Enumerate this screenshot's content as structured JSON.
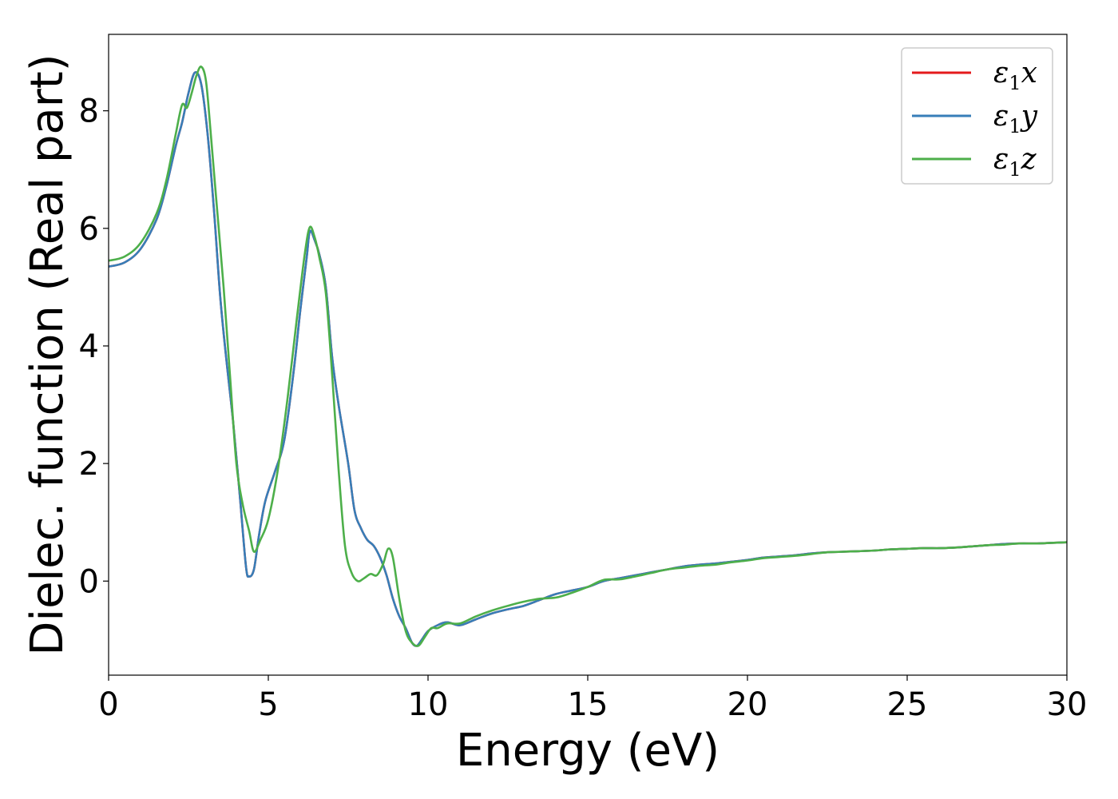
{
  "chart_data": {
    "type": "line",
    "title": "",
    "xlabel": "Energy (eV)",
    "ylabel": "Dielec. function (Real part)",
    "xlim": [
      0,
      30
    ],
    "ylim": [
      -1.6,
      9.3
    ],
    "xticks": [
      0,
      5,
      10,
      15,
      20,
      25,
      30
    ],
    "yticks": [
      0,
      2,
      4,
      6,
      8
    ],
    "grid": false,
    "legend_position": "top-right",
    "series": [
      {
        "name": "ε1x",
        "label_base": "ε",
        "label_sub": "1",
        "label_tail": "x",
        "color": "#e41a1c",
        "points": [
          [
            0,
            5.35
          ],
          [
            0.5,
            5.42
          ],
          [
            1.0,
            5.65
          ],
          [
            1.5,
            6.15
          ],
          [
            1.8,
            6.7
          ],
          [
            2.1,
            7.4
          ],
          [
            2.3,
            7.8
          ],
          [
            2.5,
            8.3
          ],
          [
            2.7,
            8.65
          ],
          [
            2.9,
            8.45
          ],
          [
            3.1,
            7.6
          ],
          [
            3.3,
            6.3
          ],
          [
            3.5,
            4.8
          ],
          [
            3.7,
            3.7
          ],
          [
            3.9,
            2.7
          ],
          [
            4.1,
            1.5
          ],
          [
            4.3,
            0.25
          ],
          [
            4.4,
            0.08
          ],
          [
            4.55,
            0.2
          ],
          [
            4.7,
            0.75
          ],
          [
            4.9,
            1.35
          ],
          [
            5.2,
            1.85
          ],
          [
            5.5,
            2.4
          ],
          [
            5.8,
            3.6
          ],
          [
            6.0,
            4.6
          ],
          [
            6.2,
            5.5
          ],
          [
            6.3,
            5.95
          ],
          [
            6.45,
            5.8
          ],
          [
            6.6,
            5.55
          ],
          [
            6.8,
            5.0
          ],
          [
            7.0,
            3.8
          ],
          [
            7.2,
            3.0
          ],
          [
            7.5,
            2.0
          ],
          [
            7.7,
            1.2
          ],
          [
            7.9,
            0.9
          ],
          [
            8.1,
            0.7
          ],
          [
            8.3,
            0.6
          ],
          [
            8.5,
            0.4
          ],
          [
            8.7,
            0.1
          ],
          [
            8.9,
            -0.3
          ],
          [
            9.1,
            -0.6
          ],
          [
            9.3,
            -0.8
          ],
          [
            9.5,
            -1.05
          ],
          [
            9.65,
            -1.1
          ],
          [
            9.8,
            -1.0
          ],
          [
            10.0,
            -0.85
          ],
          [
            10.3,
            -0.75
          ],
          [
            10.6,
            -0.7
          ],
          [
            11.0,
            -0.75
          ],
          [
            11.5,
            -0.65
          ],
          [
            12.0,
            -0.55
          ],
          [
            12.5,
            -0.48
          ],
          [
            13.0,
            -0.42
          ],
          [
            13.5,
            -0.32
          ],
          [
            14.0,
            -0.22
          ],
          [
            14.5,
            -0.16
          ],
          [
            15.0,
            -0.1
          ],
          [
            15.5,
            0.0
          ],
          [
            16.0,
            0.05
          ],
          [
            16.5,
            0.1
          ],
          [
            17.0,
            0.15
          ],
          [
            17.5,
            0.2
          ],
          [
            18.0,
            0.25
          ],
          [
            18.5,
            0.28
          ],
          [
            19.0,
            0.3
          ],
          [
            19.5,
            0.33
          ],
          [
            20.0,
            0.36
          ],
          [
            20.5,
            0.4
          ],
          [
            21.0,
            0.42
          ],
          [
            21.5,
            0.44
          ],
          [
            22.0,
            0.47
          ],
          [
            22.5,
            0.49
          ],
          [
            23.0,
            0.5
          ],
          [
            23.5,
            0.51
          ],
          [
            24.0,
            0.52
          ],
          [
            24.5,
            0.54
          ],
          [
            25.0,
            0.55
          ],
          [
            25.5,
            0.56
          ],
          [
            26.0,
            0.56
          ],
          [
            26.5,
            0.57
          ],
          [
            27.0,
            0.59
          ],
          [
            27.5,
            0.61
          ],
          [
            28.0,
            0.63
          ],
          [
            28.5,
            0.64
          ],
          [
            29.0,
            0.64
          ],
          [
            29.5,
            0.65
          ],
          [
            30.0,
            0.66
          ]
        ]
      },
      {
        "name": "ε1y",
        "label_base": "ε",
        "label_sub": "1",
        "label_tail": "y",
        "color": "#377eb8",
        "points": [
          [
            0,
            5.35
          ],
          [
            0.5,
            5.42
          ],
          [
            1.0,
            5.65
          ],
          [
            1.5,
            6.15
          ],
          [
            1.8,
            6.7
          ],
          [
            2.1,
            7.4
          ],
          [
            2.3,
            7.8
          ],
          [
            2.5,
            8.3
          ],
          [
            2.7,
            8.65
          ],
          [
            2.9,
            8.45
          ],
          [
            3.1,
            7.6
          ],
          [
            3.3,
            6.3
          ],
          [
            3.5,
            4.8
          ],
          [
            3.7,
            3.7
          ],
          [
            3.9,
            2.7
          ],
          [
            4.1,
            1.5
          ],
          [
            4.3,
            0.25
          ],
          [
            4.4,
            0.08
          ],
          [
            4.55,
            0.2
          ],
          [
            4.7,
            0.75
          ],
          [
            4.9,
            1.35
          ],
          [
            5.2,
            1.85
          ],
          [
            5.5,
            2.4
          ],
          [
            5.8,
            3.6
          ],
          [
            6.0,
            4.6
          ],
          [
            6.2,
            5.5
          ],
          [
            6.3,
            5.95
          ],
          [
            6.45,
            5.8
          ],
          [
            6.6,
            5.55
          ],
          [
            6.8,
            5.0
          ],
          [
            7.0,
            3.8
          ],
          [
            7.2,
            3.0
          ],
          [
            7.5,
            2.0
          ],
          [
            7.7,
            1.2
          ],
          [
            7.9,
            0.9
          ],
          [
            8.1,
            0.7
          ],
          [
            8.3,
            0.6
          ],
          [
            8.5,
            0.4
          ],
          [
            8.7,
            0.1
          ],
          [
            8.9,
            -0.3
          ],
          [
            9.1,
            -0.6
          ],
          [
            9.3,
            -0.8
          ],
          [
            9.5,
            -1.05
          ],
          [
            9.65,
            -1.1
          ],
          [
            9.8,
            -1.0
          ],
          [
            10.0,
            -0.85
          ],
          [
            10.3,
            -0.75
          ],
          [
            10.6,
            -0.7
          ],
          [
            11.0,
            -0.75
          ],
          [
            11.5,
            -0.65
          ],
          [
            12.0,
            -0.55
          ],
          [
            12.5,
            -0.48
          ],
          [
            13.0,
            -0.42
          ],
          [
            13.5,
            -0.32
          ],
          [
            14.0,
            -0.22
          ],
          [
            14.5,
            -0.16
          ],
          [
            15.0,
            -0.1
          ],
          [
            15.5,
            0.0
          ],
          [
            16.0,
            0.05
          ],
          [
            16.5,
            0.1
          ],
          [
            17.0,
            0.15
          ],
          [
            17.5,
            0.2
          ],
          [
            18.0,
            0.25
          ],
          [
            18.5,
            0.28
          ],
          [
            19.0,
            0.3
          ],
          [
            19.5,
            0.33
          ],
          [
            20.0,
            0.36
          ],
          [
            20.5,
            0.4
          ],
          [
            21.0,
            0.42
          ],
          [
            21.5,
            0.44
          ],
          [
            22.0,
            0.47
          ],
          [
            22.5,
            0.49
          ],
          [
            23.0,
            0.5
          ],
          [
            23.5,
            0.51
          ],
          [
            24.0,
            0.52
          ],
          [
            24.5,
            0.54
          ],
          [
            25.0,
            0.55
          ],
          [
            25.5,
            0.56
          ],
          [
            26.0,
            0.56
          ],
          [
            26.5,
            0.57
          ],
          [
            27.0,
            0.59
          ],
          [
            27.5,
            0.61
          ],
          [
            28.0,
            0.63
          ],
          [
            28.5,
            0.64
          ],
          [
            29.0,
            0.64
          ],
          [
            29.5,
            0.65
          ],
          [
            30.0,
            0.66
          ]
        ]
      },
      {
        "name": "ε1z",
        "label_base": "ε",
        "label_sub": "1",
        "label_tail": "z",
        "color": "#4daf4a",
        "points": [
          [
            0,
            5.45
          ],
          [
            0.5,
            5.52
          ],
          [
            1.0,
            5.75
          ],
          [
            1.5,
            6.25
          ],
          [
            1.8,
            6.8
          ],
          [
            2.1,
            7.6
          ],
          [
            2.3,
            8.1
          ],
          [
            2.45,
            8.05
          ],
          [
            2.6,
            8.3
          ],
          [
            2.75,
            8.6
          ],
          [
            2.9,
            8.75
          ],
          [
            3.05,
            8.5
          ],
          [
            3.2,
            7.6
          ],
          [
            3.4,
            6.3
          ],
          [
            3.6,
            5.0
          ],
          [
            3.8,
            3.5
          ],
          [
            4.0,
            2.0
          ],
          [
            4.2,
            1.3
          ],
          [
            4.4,
            0.85
          ],
          [
            4.55,
            0.5
          ],
          [
            4.75,
            0.7
          ],
          [
            5.0,
            1.05
          ],
          [
            5.3,
            1.9
          ],
          [
            5.6,
            3.1
          ],
          [
            5.9,
            4.5
          ],
          [
            6.15,
            5.6
          ],
          [
            6.3,
            6.02
          ],
          [
            6.45,
            5.85
          ],
          [
            6.6,
            5.5
          ],
          [
            6.8,
            4.9
          ],
          [
            7.0,
            3.5
          ],
          [
            7.2,
            1.9
          ],
          [
            7.4,
            0.6
          ],
          [
            7.6,
            0.15
          ],
          [
            7.8,
            0.0
          ],
          [
            8.0,
            0.05
          ],
          [
            8.2,
            0.12
          ],
          [
            8.4,
            0.1
          ],
          [
            8.6,
            0.3
          ],
          [
            8.75,
            0.55
          ],
          [
            8.9,
            0.4
          ],
          [
            9.1,
            -0.3
          ],
          [
            9.3,
            -0.85
          ],
          [
            9.5,
            -1.05
          ],
          [
            9.7,
            -1.1
          ],
          [
            9.9,
            -0.95
          ],
          [
            10.1,
            -0.8
          ],
          [
            10.3,
            -0.8
          ],
          [
            10.6,
            -0.72
          ],
          [
            11.0,
            -0.72
          ],
          [
            11.5,
            -0.6
          ],
          [
            12.0,
            -0.5
          ],
          [
            12.5,
            -0.42
          ],
          [
            13.0,
            -0.35
          ],
          [
            13.5,
            -0.3
          ],
          [
            14.0,
            -0.28
          ],
          [
            14.5,
            -0.2
          ],
          [
            15.0,
            -0.1
          ],
          [
            15.5,
            0.02
          ],
          [
            16.0,
            0.03
          ],
          [
            16.5,
            0.08
          ],
          [
            17.0,
            0.14
          ],
          [
            17.5,
            0.2
          ],
          [
            18.0,
            0.23
          ],
          [
            18.5,
            0.26
          ],
          [
            19.0,
            0.28
          ],
          [
            19.5,
            0.32
          ],
          [
            20.0,
            0.35
          ],
          [
            20.5,
            0.39
          ],
          [
            21.0,
            0.41
          ],
          [
            21.5,
            0.43
          ],
          [
            22.0,
            0.46
          ],
          [
            22.5,
            0.49
          ],
          [
            23.0,
            0.5
          ],
          [
            23.5,
            0.51
          ],
          [
            24.0,
            0.52
          ],
          [
            24.5,
            0.54
          ],
          [
            25.0,
            0.55
          ],
          [
            25.5,
            0.56
          ],
          [
            26.0,
            0.56
          ],
          [
            26.5,
            0.57
          ],
          [
            27.0,
            0.59
          ],
          [
            27.5,
            0.61
          ],
          [
            28.0,
            0.62
          ],
          [
            28.5,
            0.64
          ],
          [
            29.0,
            0.64
          ],
          [
            29.5,
            0.65
          ],
          [
            30.0,
            0.66
          ]
        ]
      }
    ]
  }
}
